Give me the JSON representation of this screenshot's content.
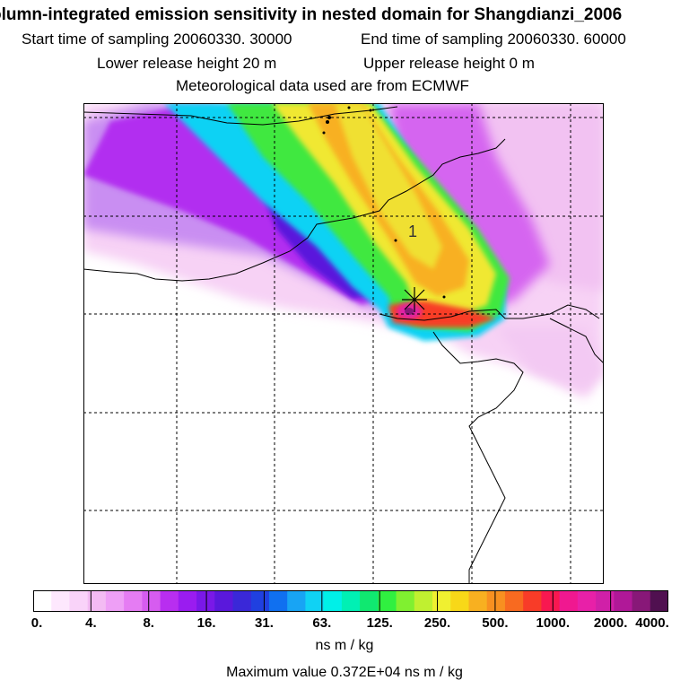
{
  "header": {
    "title": "olumn-integrated emission sensitivity in nested domain for Shangdianzi_2006",
    "start_label": "Start time of sampling 20060330. 30000",
    "end_label": "End time of sampling 20060330. 60000",
    "lower_label": "Lower release height   20 m",
    "upper_label": "Upper release height    0 m",
    "met_label": "Meteorological data used are from ECMWF"
  },
  "map": {
    "release_marker": "1",
    "marker_icon": "cross-star-icon"
  },
  "colorbar": {
    "colors": [
      "#ffffff",
      "#fde8fd",
      "#f9d3f9",
      "#f3bbf3",
      "#ee9ff6",
      "#e57cf3",
      "#d65cf0",
      "#b82ef0",
      "#9a1cf0",
      "#7a18e8",
      "#5a18dc",
      "#3a28d8",
      "#2040e0",
      "#1070f0",
      "#18a4f4",
      "#10d2f4",
      "#00f0e8",
      "#00f0b4",
      "#10e870",
      "#30f040",
      "#80f030",
      "#c0f030",
      "#f0f030",
      "#f8d818",
      "#f8b020",
      "#f89020",
      "#f86a20",
      "#f83c28",
      "#f81850",
      "#f01890",
      "#e820a8",
      "#d020a8",
      "#b01898",
      "#881878",
      "#501050"
    ],
    "tick_labels": [
      "0.",
      "4.",
      "8.",
      "16.",
      "31.",
      "63.",
      "125.",
      "250.",
      "500.",
      "1000.",
      "2000.",
      "4000."
    ],
    "units": "ns m / kg"
  },
  "footer": {
    "max_value": "Maximum value  0.372E+04 ns m / kg"
  }
}
